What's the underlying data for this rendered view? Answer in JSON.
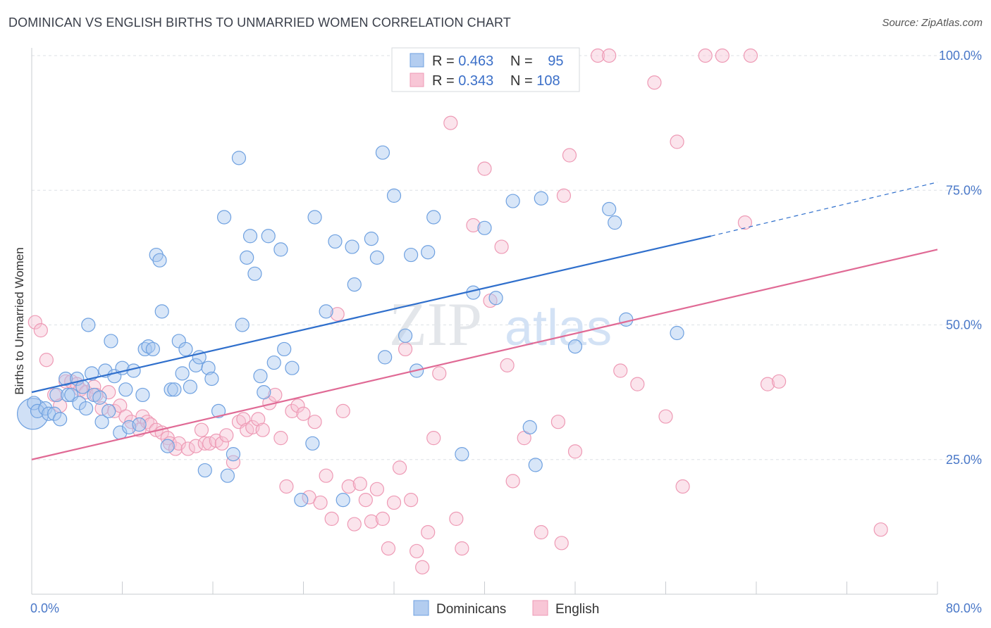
{
  "title": "DOMINICAN VS ENGLISH BIRTHS TO UNMARRIED WOMEN CORRELATION CHART",
  "source": "Source: ZipAtlas.com",
  "watermark": {
    "zip": "ZIP",
    "atlas": "atlas"
  },
  "chart_data": {
    "type": "scatter",
    "title": "DOMINICAN VS ENGLISH BIRTHS TO UNMARRIED WOMEN CORRELATION CHART",
    "xlabel": "",
    "ylabel": "Births to Unmarried Women",
    "xlim": [
      0,
      80
    ],
    "ylim": [
      0,
      100
    ],
    "x_ticks": [
      "0.0%",
      "80.0%"
    ],
    "y_ticks": [
      "25.0%",
      "50.0%",
      "75.0%",
      "100.0%"
    ],
    "y_tick_values": [
      25,
      50,
      75,
      100
    ],
    "grid": true,
    "legend_position": "top-center",
    "stats_legend": [
      {
        "r_label": "R = ",
        "r": "0.463",
        "n_label": "N = ",
        "n": "95"
      },
      {
        "r_label": "R = ",
        "r": "0.343",
        "n_label": "N = ",
        "n": "108"
      }
    ],
    "series": [
      {
        "name": "Dominicans",
        "color": "#6fa1e0",
        "fill": "#a9c7ef",
        "line_color": "#2f6fcc",
        "trend": {
          "x0": 0,
          "y0": 37.5,
          "x1": 60,
          "y1": 66.5,
          "dashed_to_x": 80,
          "dashed_to_y": 76.5
        },
        "points": [
          [
            0.2,
            35.5
          ],
          [
            0.5,
            34
          ],
          [
            1.2,
            34.5
          ],
          [
            1.5,
            33.5
          ],
          [
            2.0,
            33.5
          ],
          [
            2.2,
            37
          ],
          [
            2.5,
            32.5
          ],
          [
            3.0,
            40
          ],
          [
            3.2,
            37
          ],
          [
            3.5,
            37
          ],
          [
            4.0,
            40
          ],
          [
            4.2,
            35.5
          ],
          [
            4.5,
            38.5
          ],
          [
            4.8,
            34.5
          ],
          [
            5.0,
            50
          ],
          [
            5.3,
            41
          ],
          [
            5.5,
            37
          ],
          [
            6.0,
            36.5
          ],
          [
            6.2,
            32
          ],
          [
            6.5,
            41.5
          ],
          [
            6.8,
            34
          ],
          [
            7.0,
            47
          ],
          [
            7.3,
            40.5
          ],
          [
            7.8,
            30
          ],
          [
            8.0,
            42
          ],
          [
            8.3,
            38
          ],
          [
            8.6,
            31
          ],
          [
            9.0,
            41.5
          ],
          [
            9.5,
            31.5
          ],
          [
            9.8,
            37
          ],
          [
            10.0,
            45.5
          ],
          [
            10.3,
            46
          ],
          [
            10.7,
            45.5
          ],
          [
            11.0,
            63
          ],
          [
            11.3,
            62
          ],
          [
            11.5,
            52.5
          ],
          [
            12.0,
            27.5
          ],
          [
            12.3,
            38
          ],
          [
            12.6,
            38
          ],
          [
            13.0,
            47
          ],
          [
            13.3,
            41
          ],
          [
            13.6,
            45.5
          ],
          [
            14.0,
            38.5
          ],
          [
            14.5,
            42.5
          ],
          [
            14.8,
            44
          ],
          [
            15.3,
            23
          ],
          [
            15.6,
            42
          ],
          [
            15.9,
            40
          ],
          [
            16.5,
            34
          ],
          [
            17.0,
            70
          ],
          [
            17.3,
            22
          ],
          [
            17.8,
            26
          ],
          [
            18.3,
            81
          ],
          [
            18.6,
            50
          ],
          [
            19.0,
            62.5
          ],
          [
            19.3,
            66.5
          ],
          [
            19.7,
            59.5
          ],
          [
            20.2,
            40.5
          ],
          [
            20.5,
            37.5
          ],
          [
            20.9,
            66.5
          ],
          [
            21.4,
            43
          ],
          [
            22.0,
            64
          ],
          [
            22.3,
            45.5
          ],
          [
            23.0,
            42
          ],
          [
            23.8,
            17.5
          ],
          [
            24.8,
            28
          ],
          [
            25.0,
            70
          ],
          [
            26.0,
            52.5
          ],
          [
            26.8,
            65.5
          ],
          [
            27.5,
            17.5
          ],
          [
            28.3,
            64.5
          ],
          [
            28.5,
            57.5
          ],
          [
            30.0,
            66
          ],
          [
            30.5,
            62.5
          ],
          [
            31.0,
            82
          ],
          [
            31.2,
            44
          ],
          [
            32.0,
            74
          ],
          [
            33.0,
            48
          ],
          [
            33.5,
            63
          ],
          [
            34.0,
            41.5
          ],
          [
            35.0,
            63.5
          ],
          [
            35.5,
            70
          ],
          [
            38.0,
            26
          ],
          [
            39.0,
            56
          ],
          [
            40.0,
            68
          ],
          [
            41.0,
            55
          ],
          [
            42.5,
            73
          ],
          [
            44.0,
            31
          ],
          [
            44.5,
            24
          ],
          [
            45.0,
            73.5
          ],
          [
            48.0,
            46
          ],
          [
            51.0,
            71.5
          ],
          [
            51.5,
            69
          ],
          [
            52.5,
            51
          ],
          [
            57.0,
            48.5
          ]
        ],
        "big_points": [
          [
            0.1,
            33.5
          ]
        ]
      },
      {
        "name": "English",
        "color": "#ee9ab5",
        "fill": "#f6c3d4",
        "line_color": "#e06a95",
        "trend": {
          "x0": 0,
          "y0": 25,
          "x1": 80,
          "y1": 64
        },
        "points": [
          [
            0.3,
            50.5
          ],
          [
            0.8,
            49
          ],
          [
            1.3,
            43.5
          ],
          [
            2.0,
            37
          ],
          [
            2.5,
            35
          ],
          [
            3.0,
            39.5
          ],
          [
            3.5,
            39.5
          ],
          [
            4.0,
            39
          ],
          [
            4.3,
            38
          ],
          [
            4.8,
            37.5
          ],
          [
            5.5,
            38.5
          ],
          [
            5.7,
            37
          ],
          [
            6.2,
            34.5
          ],
          [
            6.8,
            37.5
          ],
          [
            7.3,
            34
          ],
          [
            7.8,
            35
          ],
          [
            8.3,
            33
          ],
          [
            8.8,
            32
          ],
          [
            9.5,
            30.5
          ],
          [
            9.8,
            33
          ],
          [
            10.2,
            32
          ],
          [
            10.5,
            31.5
          ],
          [
            11.0,
            30.5
          ],
          [
            11.5,
            30
          ],
          [
            12.0,
            29
          ],
          [
            12.2,
            28
          ],
          [
            12.7,
            27
          ],
          [
            13.0,
            28
          ],
          [
            13.8,
            27
          ],
          [
            14.5,
            27.5
          ],
          [
            15.0,
            30.5
          ],
          [
            15.3,
            28
          ],
          [
            15.7,
            28
          ],
          [
            16.3,
            28.5
          ],
          [
            16.8,
            28
          ],
          [
            17.2,
            29.5
          ],
          [
            17.8,
            24.5
          ],
          [
            18.3,
            32
          ],
          [
            18.7,
            32.5
          ],
          [
            19.0,
            30.5
          ],
          [
            19.5,
            31
          ],
          [
            20.0,
            32.5
          ],
          [
            20.4,
            30.5
          ],
          [
            21.0,
            35.5
          ],
          [
            21.5,
            37
          ],
          [
            22.0,
            29
          ],
          [
            22.5,
            20
          ],
          [
            23.0,
            34
          ],
          [
            23.5,
            35
          ],
          [
            24.0,
            33.5
          ],
          [
            24.5,
            18
          ],
          [
            25.0,
            32
          ],
          [
            25.5,
            17
          ],
          [
            26.0,
            22
          ],
          [
            26.5,
            14
          ],
          [
            27.0,
            52
          ],
          [
            27.5,
            34
          ],
          [
            28.0,
            20
          ],
          [
            28.5,
            13
          ],
          [
            29.0,
            20.5
          ],
          [
            29.5,
            17.5
          ],
          [
            30.0,
            13.5
          ],
          [
            30.5,
            19.5
          ],
          [
            31.0,
            14
          ],
          [
            31.5,
            8.5
          ],
          [
            32.0,
            17
          ],
          [
            32.5,
            23.5
          ],
          [
            33.0,
            45.5
          ],
          [
            33.5,
            17.5
          ],
          [
            34.0,
            8
          ],
          [
            34.5,
            5
          ],
          [
            35.0,
            11.5
          ],
          [
            35.5,
            29
          ],
          [
            36.0,
            41
          ],
          [
            37.0,
            87.5
          ],
          [
            37.5,
            14
          ],
          [
            38.0,
            8.5
          ],
          [
            39.0,
            68.5
          ],
          [
            40.0,
            79
          ],
          [
            40.5,
            54.5
          ],
          [
            41.5,
            64.5
          ],
          [
            42.0,
            42.5
          ],
          [
            42.5,
            21
          ],
          [
            43.5,
            29
          ],
          [
            45.0,
            11.5
          ],
          [
            45.5,
            100
          ],
          [
            46.5,
            32
          ],
          [
            46.8,
            9.5
          ],
          [
            47.0,
            74
          ],
          [
            47.5,
            81.5
          ],
          [
            48.0,
            26.5
          ],
          [
            50.0,
            100
          ],
          [
            51.0,
            100
          ],
          [
            52.0,
            41.5
          ],
          [
            53.5,
            39
          ],
          [
            55.0,
            95
          ],
          [
            56.0,
            33
          ],
          [
            57.0,
            84
          ],
          [
            57.5,
            20
          ],
          [
            59.5,
            100
          ],
          [
            61.0,
            100
          ],
          [
            63.0,
            69
          ],
          [
            63.5,
            100
          ],
          [
            65.0,
            39
          ],
          [
            66.0,
            39.5
          ],
          [
            75.0,
            12
          ]
        ]
      }
    ]
  },
  "bottom_legend": [
    {
      "label": "Dominicans"
    },
    {
      "label": "English"
    }
  ]
}
